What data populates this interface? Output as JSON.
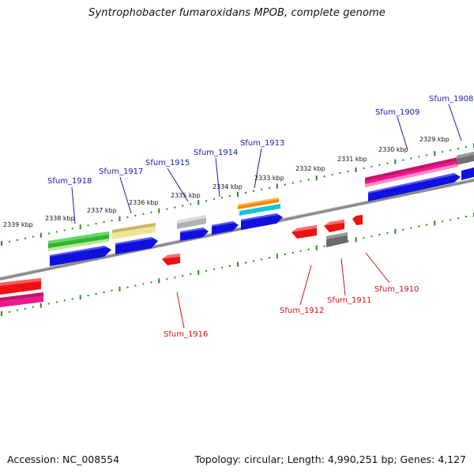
{
  "title": "Syntrophobacter fumaroxidans MPOB, complete genome",
  "footer": {
    "accession": "Accession: NC_008554",
    "summary": "Topology: circular; Length: 4,990,251 bp; Genes: 4,127"
  },
  "colors": {
    "forward_label": "#1a1aa6",
    "reverse_label": "#cc1111",
    "tick": "#228b22",
    "backbone": "#8c8c8c"
  },
  "scale_labels": [
    "2339 kbp",
    "2338 kbp",
    "2337 kbp",
    "2336 kbp",
    "2335 kbp",
    "2334 kbp",
    "2333 kbp",
    "2332 kbp",
    "2331 kbp",
    "2330 kbp",
    "2329 kbp"
  ],
  "forward_gene_labels": [
    "Sfum_1918",
    "Sfum_1917",
    "Sfum_1915",
    "Sfum_1914",
    "Sfum_1913",
    "Sfum_1909",
    "Sfum_1908"
  ],
  "reverse_gene_labels": [
    "Sfum_1916",
    "Sfum_1912",
    "Sfum_1911",
    "Sfum_1910"
  ]
}
